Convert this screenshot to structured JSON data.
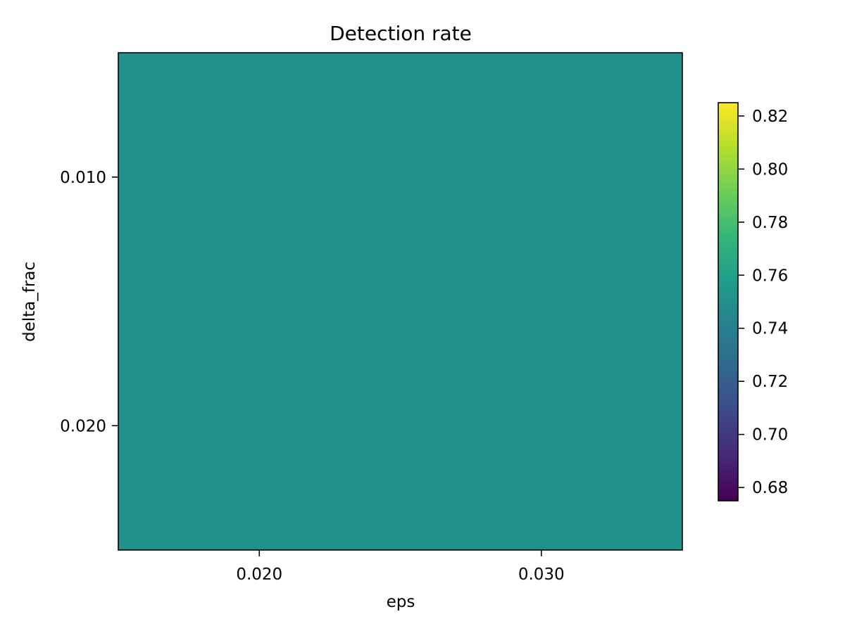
{
  "chart_data": {
    "type": "heatmap",
    "title": "Detection rate",
    "xlabel": "eps",
    "ylabel": "delta_frac",
    "x": [
      0.02,
      0.03
    ],
    "y": [
      0.01,
      0.02
    ],
    "x_tick_labels": [
      "0.020",
      "0.030"
    ],
    "y_tick_labels": [
      "0.010",
      "0.020"
    ],
    "values": [
      [
        0.75,
        0.75
      ],
      [
        0.75,
        0.75
      ]
    ],
    "colormap": "viridis",
    "colorbar": {
      "range": [
        0.675,
        0.825
      ],
      "ticks": [
        0.68,
        0.7,
        0.72,
        0.74,
        0.76,
        0.78,
        0.8,
        0.82
      ],
      "tick_labels": [
        "0.68",
        "0.70",
        "0.72",
        "0.74",
        "0.76",
        "0.78",
        "0.80",
        "0.82"
      ],
      "placement": "right"
    },
    "grid": false,
    "cell_color": "#21918c"
  }
}
